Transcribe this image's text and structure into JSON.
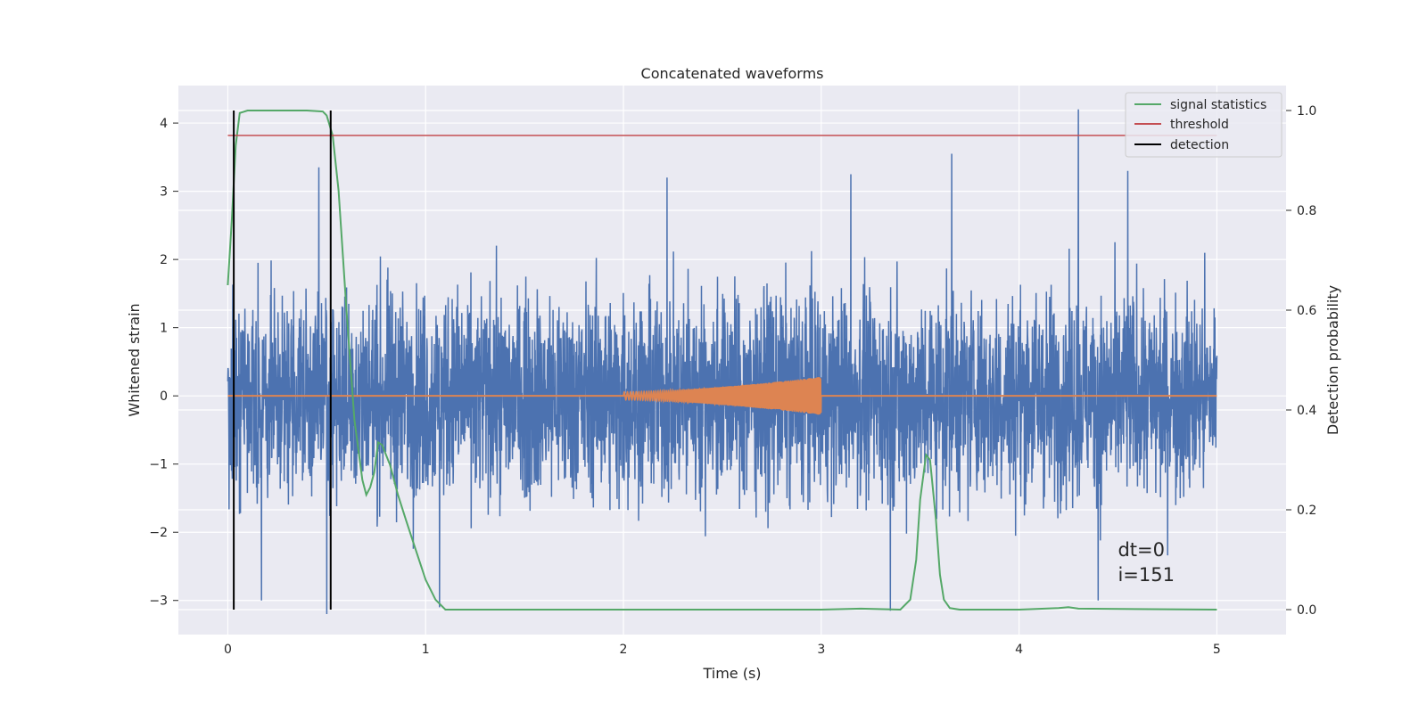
{
  "chart_data": {
    "type": "line",
    "title": "Concatenated waveforms",
    "xlabel": "Time (s)",
    "ylabel": "Whitened strain",
    "y2label": "Detection probability",
    "xlim": [
      -0.25,
      5.35
    ],
    "ylim": [
      -3.5,
      4.55
    ],
    "y2lim": [
      -0.05,
      1.05
    ],
    "xticks": [
      0,
      1,
      2,
      3,
      4,
      5
    ],
    "yticks": [
      -3,
      -2,
      -1,
      0,
      1,
      2,
      3,
      4
    ],
    "y2ticks": [
      0.0,
      0.2,
      0.4,
      0.6,
      0.8,
      1.0
    ],
    "xtick_labels": [
      "0",
      "1",
      "2",
      "3",
      "4",
      "5"
    ],
    "ytick_labels": [
      "−3",
      "−2",
      "−1",
      "0",
      "1",
      "2",
      "3",
      "4"
    ],
    "y2tick_labels": [
      "0.0",
      "0.2",
      "0.4",
      "0.6",
      "0.8",
      "1.0"
    ],
    "grid": true,
    "legend_position": "top-right",
    "colors": {
      "strain": "#4c72b0",
      "waveform": "#dd8452",
      "signal_statistics": "#55a868",
      "threshold": "#c44e52",
      "detection": "#000000",
      "background": "#eaeaf2"
    },
    "series": [
      {
        "name": "",
        "axis": "left",
        "kind": "noise",
        "x_range": [
          0,
          5
        ],
        "amplitude_rms": 1.0,
        "spikes": [
          {
            "x": 0.46,
            "y": 3.35
          },
          {
            "x": 0.5,
            "y": -3.25
          },
          {
            "x": 3.35,
            "y": -3.15
          },
          {
            "x": 4.3,
            "y": 4.2
          },
          {
            "x": 1.07,
            "y": -3.1
          },
          {
            "x": 3.66,
            "y": 3.55
          },
          {
            "x": 3.15,
            "y": 3.25
          },
          {
            "x": 4.55,
            "y": 3.3
          },
          {
            "x": 0.17,
            "y": -3.0
          },
          {
            "x": 2.22,
            "y": 3.2
          },
          {
            "x": 4.4,
            "y": -3.0
          }
        ]
      },
      {
        "name": "",
        "axis": "left",
        "kind": "chirp",
        "x_range": [
          2.0,
          3.0
        ],
        "amplitude_start": 0.06,
        "amplitude_end": 0.28
      },
      {
        "name": "signal statistics",
        "axis": "right",
        "x": [
          0.0,
          0.02,
          0.04,
          0.06,
          0.1,
          0.2,
          0.3,
          0.4,
          0.48,
          0.5,
          0.53,
          0.56,
          0.6,
          0.64,
          0.68,
          0.7,
          0.72,
          0.74,
          0.76,
          0.78,
          0.82,
          0.86,
          0.9,
          0.95,
          1.0,
          1.05,
          1.1,
          2.0,
          3.0,
          3.2,
          3.4,
          3.45,
          3.48,
          3.5,
          3.53,
          3.55,
          3.58,
          3.6,
          3.62,
          3.65,
          3.7,
          4.0,
          4.2,
          4.25,
          4.3,
          5.0
        ],
        "y": [
          0.65,
          0.78,
          0.93,
          0.995,
          1.0,
          1.0,
          1.0,
          1.0,
          0.998,
          0.99,
          0.95,
          0.84,
          0.6,
          0.38,
          0.26,
          0.23,
          0.245,
          0.275,
          0.335,
          0.33,
          0.29,
          0.23,
          0.18,
          0.12,
          0.06,
          0.02,
          0.0,
          0.0,
          0.0,
          0.002,
          0.0,
          0.02,
          0.1,
          0.22,
          0.31,
          0.3,
          0.18,
          0.07,
          0.02,
          0.003,
          0.0,
          0.0,
          0.003,
          0.005,
          0.002,
          0.0
        ]
      },
      {
        "name": "threshold",
        "axis": "right",
        "x": [
          0,
          5
        ],
        "y": [
          0.95,
          0.95
        ]
      },
      {
        "name": "detection",
        "axis": "right",
        "x": [
          0.03,
          0.52
        ],
        "y_range": [
          0.0,
          1.0
        ]
      }
    ],
    "annotations": {
      "line1": "dt=0",
      "line2": "i=151",
      "x": 4.5,
      "y": -2.35
    }
  }
}
